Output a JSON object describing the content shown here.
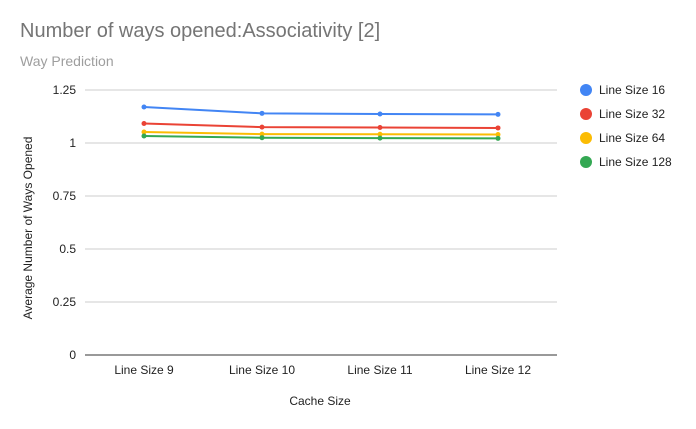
{
  "chart_data": {
    "type": "line",
    "title": "Number of ways opened:Associativity [2]",
    "subtitle": "Way Prediction",
    "xlabel": "Cache Size",
    "ylabel": "Average Number of Ways Opened",
    "categories": [
      "Line Size 9",
      "Line Size 10",
      "Line Size 11",
      "Line Size 12"
    ],
    "ylim": [
      0,
      1.25
    ],
    "yticks": [
      0,
      0.25,
      0.5,
      0.75,
      1,
      1.25
    ],
    "ytick_labels": [
      "0",
      "0.25",
      "0.5",
      "0.75",
      "1",
      "1.25"
    ],
    "grid": true,
    "legend_position": "right",
    "series": [
      {
        "name": "Line Size 16",
        "color": "#4285f4",
        "values": [
          1.17,
          1.14,
          1.137,
          1.135
        ]
      },
      {
        "name": "Line Size 32",
        "color": "#ea4335",
        "values": [
          1.092,
          1.075,
          1.073,
          1.071
        ]
      },
      {
        "name": "Line Size 64",
        "color": "#fbbc04",
        "values": [
          1.052,
          1.042,
          1.041,
          1.04
        ]
      },
      {
        "name": "Line Size 128",
        "color": "#34a853",
        "values": [
          1.033,
          1.025,
          1.023,
          1.022
        ]
      }
    ]
  }
}
